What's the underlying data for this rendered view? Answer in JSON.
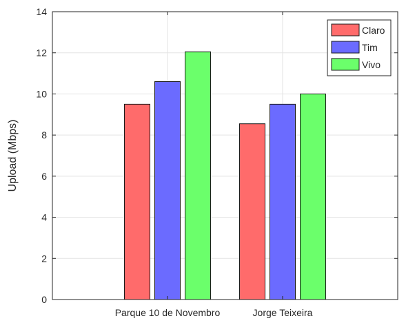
{
  "chart_data": {
    "type": "bar",
    "categories": [
      "Parque 10 de Novembro",
      "Jorge Teixeira"
    ],
    "series": [
      {
        "name": "Claro",
        "values": [
          9.5,
          8.55
        ],
        "color": "#ff6b6b"
      },
      {
        "name": "Tim",
        "values": [
          10.6,
          9.5
        ],
        "color": "#6b6bff"
      },
      {
        "name": "Vivo",
        "values": [
          12.05,
          10.0
        ],
        "color": "#6bff6b"
      }
    ],
    "ylabel": "Upload (Mbps)",
    "xlabel": "",
    "ylim": [
      0,
      14
    ],
    "yticks": [
      0,
      2,
      4,
      6,
      8,
      10,
      12,
      14
    ],
    "grid": true,
    "legend_position": "top-right"
  }
}
